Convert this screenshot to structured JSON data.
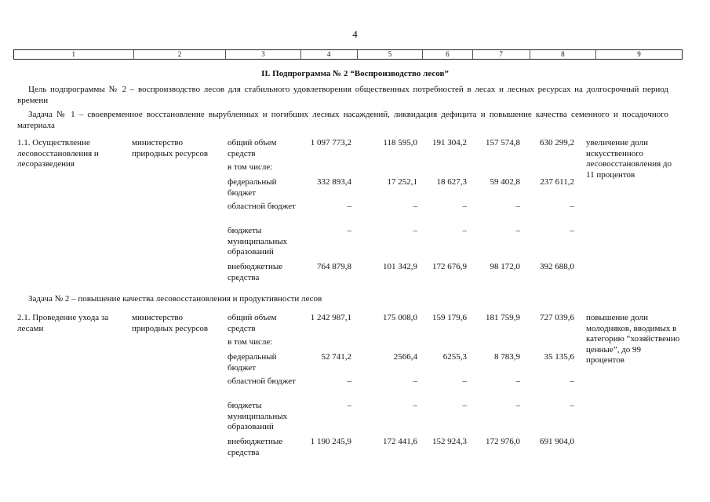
{
  "page_number": "4",
  "column_numbers": [
    "1",
    "2",
    "3",
    "4",
    "5",
    "6",
    "7",
    "8",
    "9"
  ],
  "section_title": "II. Подпрограмма № 2 “Воспроизводство лесов”",
  "goal": "Цель подпрограммы № 2 – воспроизводство лесов для стабильного удовлетворения общественных потребностей в лесах и лесных ресурсах  на долгосрочный период времени",
  "task1": "Задача № 1 – своевременное восстановление вырубленных и погибших лесных насаждений, ликвидация  дефицита и повышение качества семенного и посадочного материала",
  "task2": "Задача № 2 – повышение качества лесовосстановления и продуктивности лесов",
  "measures": [
    {
      "name": "1.1. Осуществление лесовосстановления и лесоразведения",
      "executor": "министерство природных ресурсов",
      "result": "увеличение доли искусственного лесовосстановления до 11 процентов",
      "rows": [
        {
          "label": "общий объем средств",
          "values": [
            "1 097 773,2",
            "118 595,0",
            "191 304,2",
            "157 574,8",
            "630 299,2"
          ]
        },
        {
          "label": "в том числе:",
          "values": []
        },
        {
          "label": "федеральный бюджет",
          "values": [
            "332 893,4",
            "17 252,1",
            "18 627,3",
            "59 402,8",
            "237 611,2"
          ]
        },
        {
          "label": "областной бюджет",
          "values": [
            "–",
            "–",
            "–",
            "–",
            "–"
          ]
        },
        {
          "label": "бюджеты муниципальных образований",
          "values": [
            "–",
            "–",
            "–",
            "–",
            "–"
          ]
        },
        {
          "label": "внебюджетные средства",
          "values": [
            "764 879,8",
            "101 342,9",
            "172 676,9",
            "98 172,0",
            "392 688,0"
          ]
        }
      ]
    },
    {
      "name": "2.1. Проведение ухода за лесами",
      "executor": "министерство природных ресурсов",
      "result": "повышение доли молодняков, вводимых в категорию “хозяйственно ценные”, до 99 процентов",
      "rows": [
        {
          "label": "общий объем средств",
          "values": [
            "1 242 987,1",
            "175 008,0",
            "159 179,6",
            "181 759,9",
            "727 039,6"
          ]
        },
        {
          "label": "в том числе:",
          "values": []
        },
        {
          "label": "федеральный бюджет",
          "values": [
            "52 741,2",
            "2566,4",
            "6255,3",
            "8 783,9",
            "35 135,6"
          ]
        },
        {
          "label": "областной бюджет",
          "values": [
            "–",
            "–",
            "–",
            "–",
            "–"
          ]
        },
        {
          "label": "бюджеты муниципальных образований",
          "values": [
            "–",
            "–",
            "–",
            "–",
            "–"
          ]
        },
        {
          "label": "внебюджетные средства",
          "values": [
            "1 190 245,9",
            "172 441,6",
            "152 924,3",
            "172 976,0",
            "691 904,0"
          ]
        }
      ]
    }
  ]
}
